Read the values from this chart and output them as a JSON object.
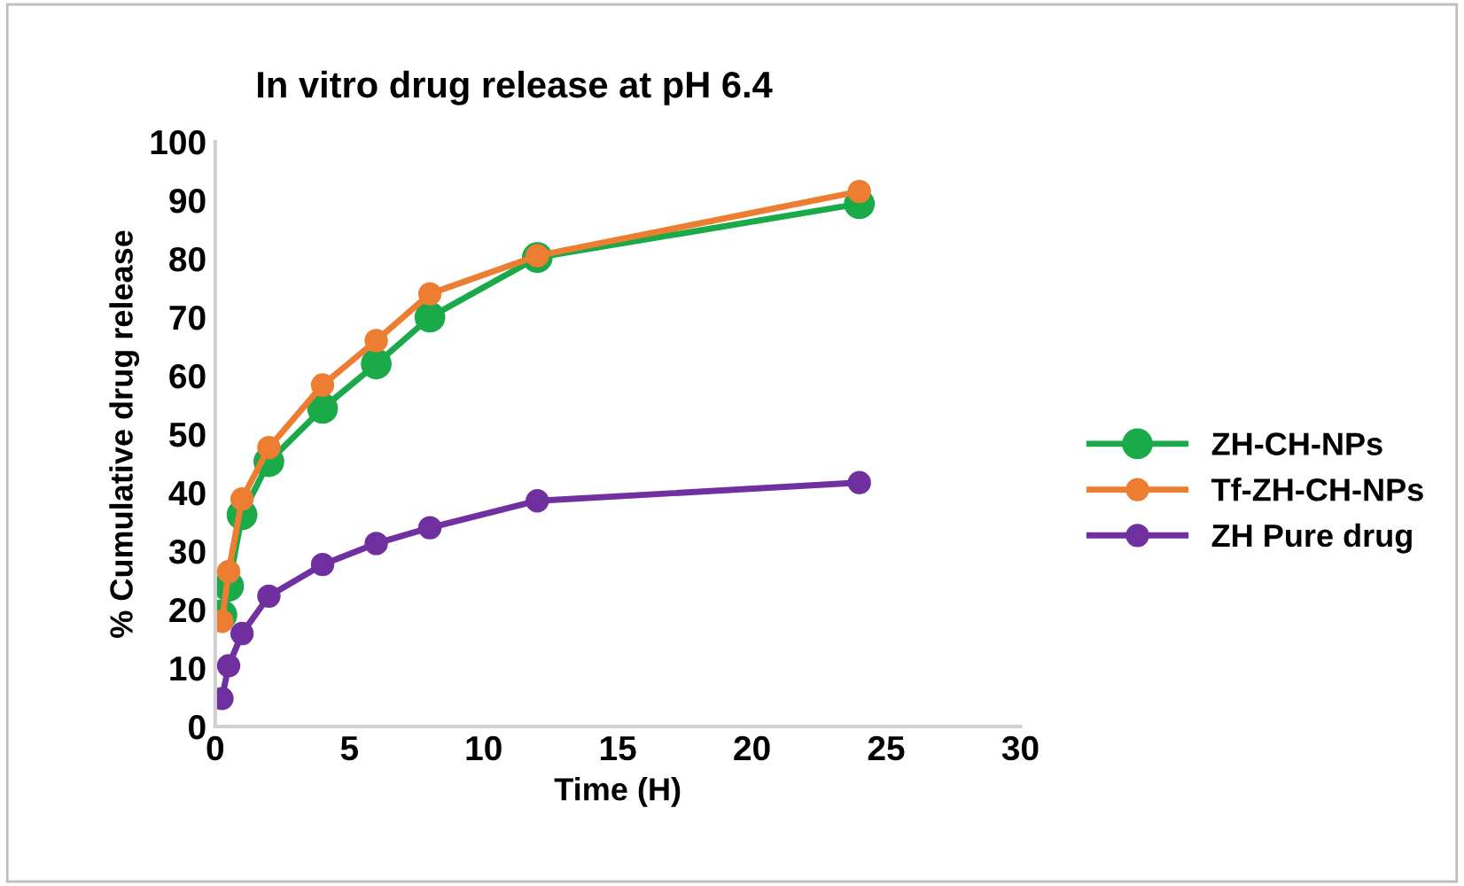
{
  "chart_data": {
    "type": "line",
    "title": "In vitro drug release at pH 6.4",
    "xlabel": "Time (H)",
    "ylabel": "% Cumulative drug release",
    "x": [
      0.25,
      0.5,
      1,
      2,
      4,
      6,
      8,
      12,
      24
    ],
    "series": [
      {
        "name": "ZH-CH-NPs",
        "color": "#1aaa4a",
        "values": [
          19.1,
          24,
          36.2,
          45.3,
          54.4,
          62,
          70,
          80.2,
          89.4
        ]
      },
      {
        "name": "Tf-ZH-CH-NPs",
        "color": "#ed7d31",
        "values": [
          18,
          26.5,
          38.9,
          47.7,
          58.4,
          66,
          74,
          80.5,
          91.5
        ]
      },
      {
        "name": "ZH Pure drug",
        "color": "#7030a0",
        "values": [
          4.8,
          10.4,
          15.9,
          22.3,
          27.7,
          31.3,
          34,
          38.6,
          41.7
        ]
      }
    ],
    "xlim": [
      0,
      30
    ],
    "xticks": [
      0,
      5,
      10,
      15,
      20,
      25,
      30
    ],
    "ylim": [
      0,
      100
    ],
    "yticks": [
      0,
      10,
      20,
      30,
      40,
      50,
      60,
      70,
      80,
      90,
      100
    ],
    "grid": false,
    "legend": "right",
    "marker": "circle",
    "line_style": "solid"
  }
}
